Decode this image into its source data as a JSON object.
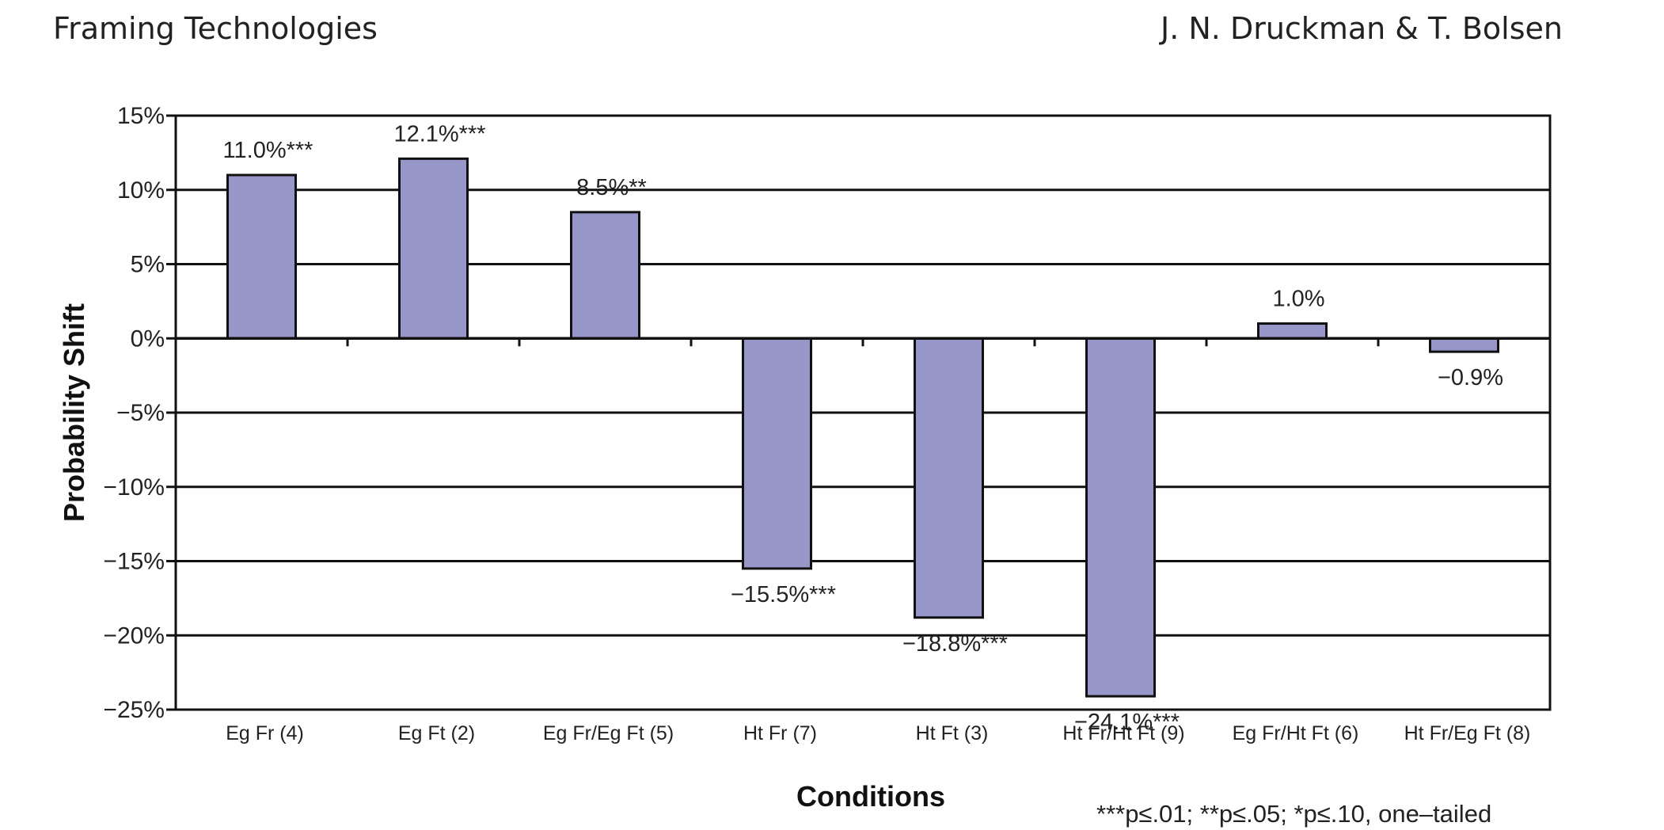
{
  "header": {
    "title": "Framing Technologies",
    "authors": "J. N. Druckman & T. Bolsen"
  },
  "chart_data": {
    "type": "bar",
    "categories": [
      "Eg Fr (4)",
      "Eg Ft (2)",
      "Eg Fr/Eg Ft (5)",
      "Ht Fr (7)",
      "Ht Ft (3)",
      "Ht Fr/Ht Ft (9)",
      "Eg Fr/Ht Ft (6)",
      "Ht Fr/Eg Ft (8)"
    ],
    "values": [
      11.0,
      12.1,
      8.5,
      -15.5,
      -18.8,
      -24.1,
      1.0,
      -0.9
    ],
    "data_labels": [
      "11.0%***",
      "12.1%***",
      "8.5%**",
      "−15.5%***",
      "−18.8%***",
      "−24.1%***",
      "1.0%",
      "−0.9%"
    ],
    "ylim": [
      -25,
      15
    ],
    "yticks": [
      15,
      10,
      5,
      0,
      -5,
      -10,
      -15,
      -20,
      -25
    ],
    "ytick_labels": [
      "15%",
      "10%",
      "5%",
      "0%",
      "−5%",
      "−10%",
      "−15%",
      "−20%",
      "−25%"
    ],
    "xlabel": "Conditions",
    "ylabel": "Probability Shift",
    "note": "***p≤.01; **p≤.05; *p≤.10, one–tailed",
    "grid": true,
    "bar_color": "#9696c8"
  }
}
